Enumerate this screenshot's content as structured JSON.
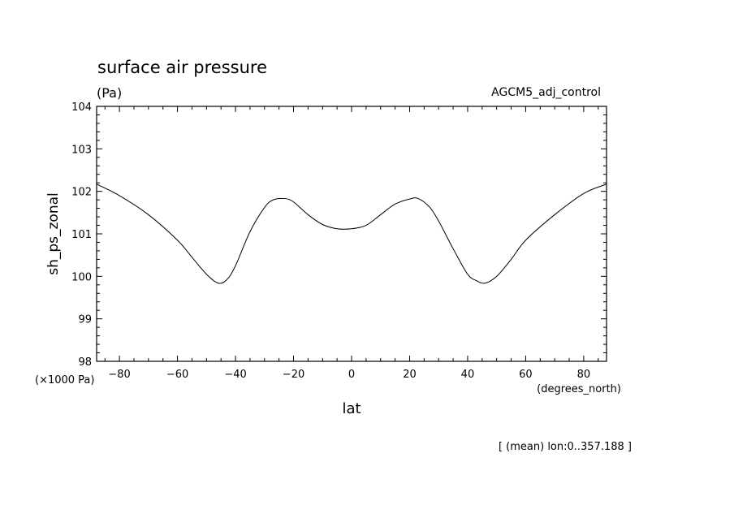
{
  "chart_data": {
    "type": "line",
    "title": "surface air pressure",
    "units": "(Pa)",
    "dataset": "AGCM5_adj_control",
    "xlabel": "lat",
    "x_units": "(degrees_north)",
    "ylabel": "sh_ps_zonal",
    "y_scale_label": "(×1000 Pa)",
    "footer": "[ (mean) lon:0..357.188 ]",
    "xlim": [
      -87.86,
      87.86
    ],
    "ylim": [
      98,
      104
    ],
    "x_ticks": [
      -80,
      -60,
      -40,
      -20,
      0,
      20,
      40,
      60,
      80
    ],
    "x_tick_labels": [
      "−80",
      "−60",
      "−40",
      "−20",
      "0",
      "20",
      "40",
      "60",
      "80"
    ],
    "y_ticks": [
      98,
      99,
      100,
      101,
      102,
      103,
      104
    ],
    "y_tick_labels": [
      "98",
      "99",
      "100",
      "101",
      "102",
      "103",
      "104"
    ],
    "grid": false,
    "series": [
      {
        "name": "sh_ps_zonal",
        "x": [
          -87.86,
          -80,
          -70,
          -60,
          -55,
          -50,
          -46,
          -43,
          -40,
          -35,
          -30,
          -27,
          -23,
          -20,
          -15,
          -10,
          -5,
          0,
          5,
          10,
          15,
          20,
          23,
          27,
          30,
          35,
          40,
          43,
          46,
          50,
          55,
          60,
          70,
          80,
          87.86
        ],
        "y": [
          102.17,
          101.9,
          101.45,
          100.85,
          100.45,
          100.05,
          99.84,
          99.92,
          100.25,
          101.05,
          101.62,
          101.8,
          101.83,
          101.75,
          101.45,
          101.22,
          101.12,
          101.12,
          101.2,
          101.45,
          101.7,
          101.82,
          101.83,
          101.62,
          101.3,
          100.65,
          100.05,
          99.9,
          99.84,
          100.0,
          100.4,
          100.85,
          101.45,
          101.95,
          102.17
        ]
      }
    ]
  }
}
